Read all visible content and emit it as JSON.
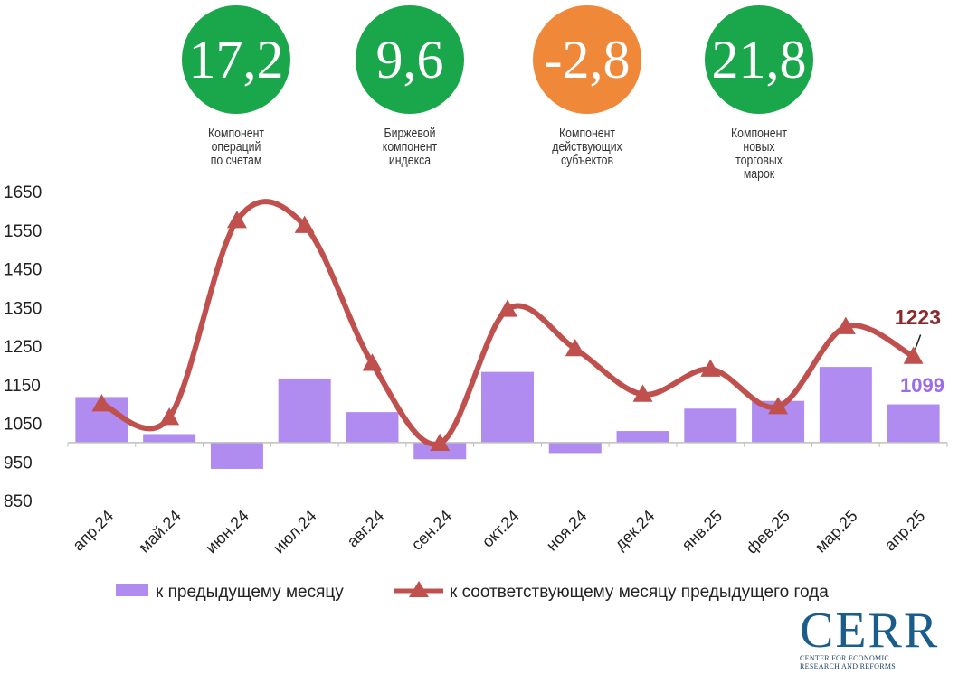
{
  "kpis": [
    {
      "value": "17,2",
      "color": "#1aa64a",
      "label": [
        "Компонент",
        "операций",
        "по счетам"
      ]
    },
    {
      "value": "9,6",
      "color": "#1aa64a",
      "label": [
        "Биржевой",
        "компонент",
        "индекса"
      ]
    },
    {
      "value": "-2,8",
      "color": "#f0883a",
      "label": [
        "Компонент",
        "действующих",
        "субъектов"
      ]
    },
    {
      "value": "21,8",
      "color": "#1aa64a",
      "label": [
        "Компонент",
        "новых",
        "торговых",
        "марок"
      ]
    }
  ],
  "chart_data": {
    "type": "bar",
    "categories": [
      "апр.24",
      "май.24",
      "июн.24",
      "июл.24",
      "авг.24",
      "сен.24",
      "окт.24",
      "ноя.24",
      "дек.24",
      "янв.25",
      "фев.25",
      "мар.25",
      "апр.25"
    ],
    "baseline": 1000,
    "ylim": [
      850,
      1650
    ],
    "yticks": [
      850,
      950,
      1050,
      1150,
      1250,
      1350,
      1450,
      1550,
      1650
    ],
    "series": [
      {
        "name": "к предыдущему месяцу",
        "type": "bar",
        "color": "#b18cf0",
        "values": [
          1118,
          1022,
          932,
          1166,
          1079,
          957,
          1183,
          973,
          1030,
          1088,
          1108,
          1196,
          1099
        ]
      },
      {
        "name": "к соответствующему месяцу предыдущего года",
        "type": "line",
        "color": "#c0504d",
        "values": [
          1100,
          1065,
          1575,
          1562,
          1205,
          998,
          1345,
          1243,
          1125,
          1190,
          1093,
          1300,
          1223
        ]
      }
    ],
    "annotations": [
      {
        "text": "1223",
        "color": "#8b2a2a"
      },
      {
        "text": "1099",
        "color": "#9b6be8"
      }
    ],
    "grid": false,
    "legend": "bottom"
  },
  "logo": {
    "text": "CERR",
    "subtitle": [
      "CENTER FOR ECONOMIC",
      "RESEARCH AND REFORMS"
    ]
  }
}
